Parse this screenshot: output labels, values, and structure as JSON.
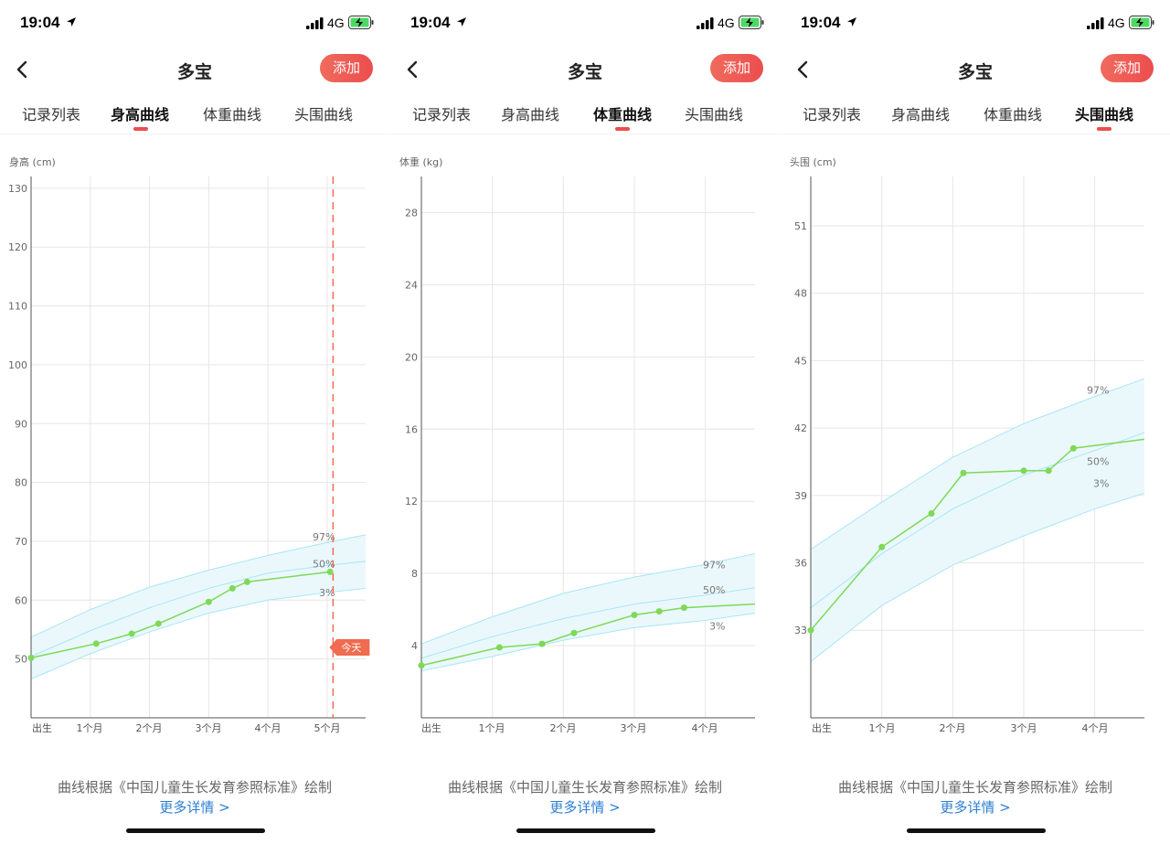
{
  "status": {
    "time": "19:04",
    "network": "4G"
  },
  "page": {
    "title": "多宝",
    "add_label": "添加"
  },
  "tabs": [
    "记录列表",
    "身高曲线",
    "体重曲线",
    "头围曲线"
  ],
  "footer": {
    "note": "曲线根据《中国儿童生长发育参照标准》绘制",
    "more": "更多详情 >"
  },
  "colors": {
    "accent": "#ec4d4e",
    "data_line": "#7ed957",
    "band_fill": "#eaf8fc",
    "band_line": "#a8e6f5",
    "today_line": "#f06b50",
    "link": "#2d7fd3"
  },
  "chart_data": [
    {
      "type": "line",
      "tab": "身高曲线",
      "ylabel": "身高 (cm)",
      "x_ticks": [
        "出生",
        "1个月",
        "2个月",
        "3个月",
        "4个月",
        "5个月"
      ],
      "xlim": [
        0,
        5.65
      ],
      "ylim": [
        40,
        132
      ],
      "y_ticks": [
        50,
        60,
        70,
        80,
        90,
        100,
        110,
        120,
        130
      ],
      "percentiles": [
        {
          "label": "97%",
          "values": [
            [
              0,
              53.7
            ],
            [
              1,
              58.4
            ],
            [
              2,
              62.2
            ],
            [
              3,
              65.1
            ],
            [
              4,
              67.6
            ],
            [
              5,
              69.8
            ],
            [
              5.65,
              71.1
            ]
          ]
        },
        {
          "label": "50%",
          "values": [
            [
              0,
              50.4
            ],
            [
              1,
              54.8
            ],
            [
              2,
              58.7
            ],
            [
              3,
              62.0
            ],
            [
              4,
              64.6
            ],
            [
              5,
              65.9
            ],
            [
              5.65,
              66.6
            ]
          ]
        },
        {
          "label": "3%",
          "values": [
            [
              0,
              46.6
            ],
            [
              1,
              50.9
            ],
            [
              2,
              54.6
            ],
            [
              3,
              57.8
            ],
            [
              4,
              60.0
            ],
            [
              5,
              61.3
            ],
            [
              5.65,
              62.0
            ]
          ]
        }
      ],
      "series": [
        {
          "values": [
            [
              0,
              50.2
            ],
            [
              1.1,
              52.6
            ],
            [
              1.7,
              54.3
            ],
            [
              2.15,
              56.0
            ],
            [
              3,
              59.7
            ],
            [
              3.4,
              62.0
            ],
            [
              3.65,
              63.1
            ],
            [
              5.05,
              64.8
            ]
          ]
        }
      ],
      "today": {
        "x": 5.1,
        "label": "今天"
      }
    },
    {
      "type": "line",
      "tab": "体重曲线",
      "ylabel": "体重 (kg)",
      "x_ticks": [
        "出生",
        "1个月",
        "2个月",
        "3个月",
        "4个月"
      ],
      "xlim": [
        0,
        4.7
      ],
      "ylim": [
        0,
        30
      ],
      "y_ticks": [
        4,
        8,
        12,
        16,
        20,
        24,
        28
      ],
      "percentiles": [
        {
          "label": "97%",
          "values": [
            [
              0,
              4.1
            ],
            [
              1,
              5.6
            ],
            [
              2,
              6.9
            ],
            [
              3,
              7.8
            ],
            [
              4,
              8.5
            ],
            [
              4.7,
              9.1
            ]
          ]
        },
        {
          "label": "50%",
          "values": [
            [
              0,
              3.3
            ],
            [
              1,
              4.5
            ],
            [
              2,
              5.5
            ],
            [
              3,
              6.3
            ],
            [
              4,
              6.8
            ],
            [
              4.7,
              7.2
            ]
          ]
        },
        {
          "label": "3%",
          "values": [
            [
              0,
              2.6
            ],
            [
              1,
              3.4
            ],
            [
              2,
              4.3
            ],
            [
              3,
              5.0
            ],
            [
              4,
              5.4
            ],
            [
              4.7,
              5.8
            ]
          ]
        }
      ],
      "series": [
        {
          "values": [
            [
              0,
              2.9
            ],
            [
              1.1,
              3.9
            ],
            [
              1.7,
              4.1
            ],
            [
              2.15,
              4.7
            ],
            [
              3,
              5.7
            ],
            [
              3.35,
              5.9
            ],
            [
              3.7,
              6.1
            ],
            [
              4.7,
              6.3
            ]
          ]
        }
      ]
    },
    {
      "type": "line",
      "tab": "头围曲线",
      "ylabel": "头围 (cm)",
      "x_ticks": [
        "出生",
        "1个月",
        "2个月",
        "3个月",
        "4个月"
      ],
      "xlim": [
        0,
        4.7
      ],
      "ylim": [
        29.1,
        53.2
      ],
      "y_ticks": [
        33,
        36,
        39,
        42,
        45,
        48,
        51
      ],
      "percentiles": [
        {
          "label": "97%",
          "values": [
            [
              0,
              36.6
            ],
            [
              1,
              38.7
            ],
            [
              2,
              40.7
            ],
            [
              3,
              42.2
            ],
            [
              4,
              43.4
            ],
            [
              4.7,
              44.2
            ]
          ]
        },
        {
          "label": "50%",
          "values": [
            [
              0,
              34.0
            ],
            [
              1,
              36.4
            ],
            [
              2,
              38.4
            ],
            [
              3,
              39.9
            ],
            [
              4,
              41.0
            ],
            [
              4.7,
              41.8
            ]
          ]
        },
        {
          "label": "3%",
          "values": [
            [
              0,
              31.6
            ],
            [
              1,
              34.1
            ],
            [
              2,
              35.9
            ],
            [
              3,
              37.2
            ],
            [
              4,
              38.4
            ],
            [
              4.7,
              39.1
            ]
          ]
        }
      ],
      "series": [
        {
          "values": [
            [
              0,
              33.0
            ],
            [
              1,
              36.7
            ],
            [
              1.7,
              38.2
            ],
            [
              2.15,
              40.0
            ],
            [
              3,
              40.1
            ],
            [
              3.35,
              40.1
            ],
            [
              3.7,
              41.1
            ],
            [
              4.7,
              41.5
            ]
          ]
        }
      ]
    }
  ]
}
